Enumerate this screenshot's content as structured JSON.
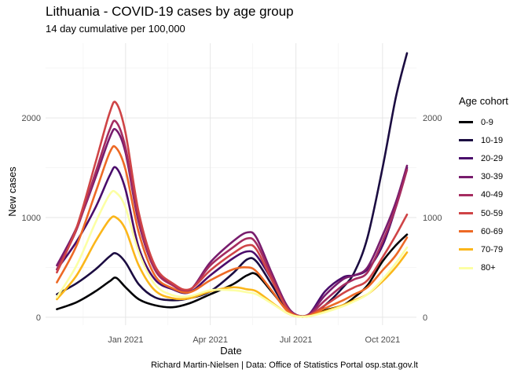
{
  "chart_data": {
    "type": "line",
    "title": "Lithuania - COVID-19 cases by age group",
    "subtitle": "14 day cumulative per 100,000",
    "xlabel": "Date",
    "ylabel": "New cases",
    "caption": "Richard Martin-Nielsen | Data: Office of Statistics Portal osp.stat.gov.lt",
    "legend_title": "Age cohort",
    "legend_position": "right",
    "grid": true,
    "x_ticks": [
      {
        "date": "2021-01-01",
        "label": "Jan 2021"
      },
      {
        "date": "2021-04-01",
        "label": "Apr 2021"
      },
      {
        "date": "2021-07-01",
        "label": "Jul 2021"
      },
      {
        "date": "2021-10-01",
        "label": "Oct 2021"
      }
    ],
    "y_ticks": [
      0,
      1000,
      2000
    ],
    "xlim": [
      "2020-10-08",
      "2021-11-06"
    ],
    "ylim": [
      -80,
      2750
    ],
    "series": [
      {
        "name": "0-9",
        "color": "#000004",
        "points": [
          [
            "2020-10-20",
            80
          ],
          [
            "2020-11-10",
            150
          ],
          [
            "2020-11-30",
            260
          ],
          [
            "2020-12-15",
            360
          ],
          [
            "2020-12-22",
            395
          ],
          [
            "2021-01-01",
            300
          ],
          [
            "2021-01-15",
            180
          ],
          [
            "2021-02-01",
            120
          ],
          [
            "2021-02-20",
            100
          ],
          [
            "2021-03-10",
            140
          ],
          [
            "2021-04-01",
            230
          ],
          [
            "2021-04-25",
            330
          ],
          [
            "2021-05-10",
            420
          ],
          [
            "2021-05-20",
            430
          ],
          [
            "2021-06-05",
            260
          ],
          [
            "2021-06-20",
            90
          ],
          [
            "2021-07-01",
            20
          ],
          [
            "2021-07-15",
            15
          ],
          [
            "2021-08-01",
            70
          ],
          [
            "2021-08-20",
            120
          ],
          [
            "2021-09-01",
            200
          ],
          [
            "2021-09-15",
            320
          ],
          [
            "2021-10-01",
            560
          ],
          [
            "2021-10-15",
            720
          ],
          [
            "2021-10-27",
            830
          ]
        ]
      },
      {
        "name": "10-19",
        "color": "#1B0C41",
        "points": [
          [
            "2020-10-20",
            230
          ],
          [
            "2020-11-10",
            340
          ],
          [
            "2020-11-30",
            480
          ],
          [
            "2020-12-15",
            610
          ],
          [
            "2020-12-22",
            640
          ],
          [
            "2021-01-01",
            550
          ],
          [
            "2021-01-15",
            330
          ],
          [
            "2021-02-01",
            200
          ],
          [
            "2021-02-20",
            170
          ],
          [
            "2021-03-10",
            190
          ],
          [
            "2021-04-01",
            260
          ],
          [
            "2021-04-25",
            440
          ],
          [
            "2021-05-10",
            580
          ],
          [
            "2021-05-20",
            560
          ],
          [
            "2021-06-05",
            330
          ],
          [
            "2021-06-20",
            100
          ],
          [
            "2021-07-01",
            20
          ],
          [
            "2021-07-15",
            15
          ],
          [
            "2021-08-01",
            120
          ],
          [
            "2021-08-20",
            300
          ],
          [
            "2021-09-01",
            450
          ],
          [
            "2021-09-15",
            800
          ],
          [
            "2021-10-01",
            1500
          ],
          [
            "2021-10-15",
            2200
          ],
          [
            "2021-10-27",
            2650
          ]
        ]
      },
      {
        "name": "20-29",
        "color": "#4A0C6B",
        "points": [
          [
            "2020-10-20",
            480
          ],
          [
            "2020-11-10",
            760
          ],
          [
            "2020-11-30",
            1100
          ],
          [
            "2020-12-15",
            1420
          ],
          [
            "2020-12-22",
            1500
          ],
          [
            "2021-01-01",
            1280
          ],
          [
            "2021-01-15",
            700
          ],
          [
            "2021-02-01",
            380
          ],
          [
            "2021-02-20",
            280
          ],
          [
            "2021-03-10",
            250
          ],
          [
            "2021-04-01",
            420
          ],
          [
            "2021-04-25",
            590
          ],
          [
            "2021-05-10",
            660
          ],
          [
            "2021-05-20",
            620
          ],
          [
            "2021-06-05",
            380
          ],
          [
            "2021-06-20",
            120
          ],
          [
            "2021-07-01",
            20
          ],
          [
            "2021-07-15",
            30
          ],
          [
            "2021-08-01",
            260
          ],
          [
            "2021-08-20",
            400
          ],
          [
            "2021-09-01",
            420
          ],
          [
            "2021-09-15",
            480
          ],
          [
            "2021-10-01",
            720
          ],
          [
            "2021-10-15",
            1100
          ],
          [
            "2021-10-27",
            1500
          ]
        ]
      },
      {
        "name": "30-39",
        "color": "#781C6D",
        "points": [
          [
            "2020-10-20",
            520
          ],
          [
            "2020-11-10",
            900
          ],
          [
            "2020-11-30",
            1400
          ],
          [
            "2020-12-15",
            1800
          ],
          [
            "2020-12-22",
            1880
          ],
          [
            "2021-01-01",
            1650
          ],
          [
            "2021-01-15",
            950
          ],
          [
            "2021-02-01",
            480
          ],
          [
            "2021-02-20",
            330
          ],
          [
            "2021-03-10",
            270
          ],
          [
            "2021-04-01",
            550
          ],
          [
            "2021-04-25",
            760
          ],
          [
            "2021-05-10",
            850
          ],
          [
            "2021-05-20",
            800
          ],
          [
            "2021-06-05",
            450
          ],
          [
            "2021-06-20",
            140
          ],
          [
            "2021-07-01",
            25
          ],
          [
            "2021-07-15",
            30
          ],
          [
            "2021-08-01",
            220
          ],
          [
            "2021-08-20",
            380
          ],
          [
            "2021-09-01",
            420
          ],
          [
            "2021-09-15",
            500
          ],
          [
            "2021-10-01",
            820
          ],
          [
            "2021-10-15",
            1150
          ],
          [
            "2021-10-27",
            1520
          ]
        ]
      },
      {
        "name": "40-49",
        "color": "#A52C60",
        "points": [
          [
            "2020-10-20",
            480
          ],
          [
            "2020-11-10",
            880
          ],
          [
            "2020-11-30",
            1450
          ],
          [
            "2020-12-15",
            1880
          ],
          [
            "2020-12-22",
            1960
          ],
          [
            "2021-01-01",
            1700
          ],
          [
            "2021-01-15",
            980
          ],
          [
            "2021-02-01",
            480
          ],
          [
            "2021-02-20",
            320
          ],
          [
            "2021-03-10",
            270
          ],
          [
            "2021-04-01",
            520
          ],
          [
            "2021-04-25",
            700
          ],
          [
            "2021-05-10",
            790
          ],
          [
            "2021-05-20",
            740
          ],
          [
            "2021-06-05",
            420
          ],
          [
            "2021-06-20",
            120
          ],
          [
            "2021-07-01",
            20
          ],
          [
            "2021-07-15",
            25
          ],
          [
            "2021-08-01",
            170
          ],
          [
            "2021-08-20",
            320
          ],
          [
            "2021-09-01",
            380
          ],
          [
            "2021-09-15",
            450
          ],
          [
            "2021-10-01",
            760
          ],
          [
            "2021-10-15",
            1100
          ],
          [
            "2021-10-27",
            1480
          ]
        ]
      },
      {
        "name": "50-59",
        "color": "#CF4446",
        "points": [
          [
            "2020-10-20",
            450
          ],
          [
            "2020-11-10",
            900
          ],
          [
            "2020-11-30",
            1550
          ],
          [
            "2020-12-15",
            2050
          ],
          [
            "2020-12-22",
            2150
          ],
          [
            "2021-01-01",
            1850
          ],
          [
            "2021-01-15",
            1050
          ],
          [
            "2021-02-01",
            520
          ],
          [
            "2021-02-20",
            340
          ],
          [
            "2021-03-10",
            280
          ],
          [
            "2021-04-01",
            470
          ],
          [
            "2021-04-25",
            640
          ],
          [
            "2021-05-10",
            720
          ],
          [
            "2021-05-20",
            680
          ],
          [
            "2021-06-05",
            380
          ],
          [
            "2021-06-20",
            110
          ],
          [
            "2021-07-01",
            20
          ],
          [
            "2021-07-15",
            20
          ],
          [
            "2021-08-01",
            120
          ],
          [
            "2021-08-20",
            240
          ],
          [
            "2021-09-01",
            300
          ],
          [
            "2021-09-15",
            370
          ],
          [
            "2021-10-01",
            600
          ],
          [
            "2021-10-15",
            820
          ],
          [
            "2021-10-27",
            1030
          ]
        ]
      },
      {
        "name": "60-69",
        "color": "#ED6925",
        "points": [
          [
            "2020-10-20",
            350
          ],
          [
            "2020-11-10",
            720
          ],
          [
            "2020-11-30",
            1250
          ],
          [
            "2020-12-15",
            1650
          ],
          [
            "2020-12-22",
            1700
          ],
          [
            "2021-01-01",
            1480
          ],
          [
            "2021-01-15",
            850
          ],
          [
            "2021-02-01",
            420
          ],
          [
            "2021-02-20",
            290
          ],
          [
            "2021-03-10",
            250
          ],
          [
            "2021-04-01",
            370
          ],
          [
            "2021-04-25",
            480
          ],
          [
            "2021-05-10",
            500
          ],
          [
            "2021-05-20",
            460
          ],
          [
            "2021-06-05",
            270
          ],
          [
            "2021-06-20",
            80
          ],
          [
            "2021-07-01",
            15
          ],
          [
            "2021-07-15",
            15
          ],
          [
            "2021-08-01",
            90
          ],
          [
            "2021-08-20",
            170
          ],
          [
            "2021-09-01",
            230
          ],
          [
            "2021-09-15",
            300
          ],
          [
            "2021-10-01",
            470
          ],
          [
            "2021-10-15",
            620
          ],
          [
            "2021-10-27",
            800
          ]
        ]
      },
      {
        "name": "70-79",
        "color": "#FBB61A",
        "points": [
          [
            "2020-10-20",
            180
          ],
          [
            "2020-11-10",
            420
          ],
          [
            "2020-11-30",
            760
          ],
          [
            "2020-12-15",
            980
          ],
          [
            "2020-12-22",
            1000
          ],
          [
            "2021-01-01",
            880
          ],
          [
            "2021-01-15",
            520
          ],
          [
            "2021-02-01",
            270
          ],
          [
            "2021-02-20",
            190
          ],
          [
            "2021-03-10",
            190
          ],
          [
            "2021-04-01",
            260
          ],
          [
            "2021-04-25",
            300
          ],
          [
            "2021-05-10",
            280
          ],
          [
            "2021-05-20",
            260
          ],
          [
            "2021-06-05",
            150
          ],
          [
            "2021-06-20",
            50
          ],
          [
            "2021-07-01",
            10
          ],
          [
            "2021-07-15",
            10
          ],
          [
            "2021-08-01",
            60
          ],
          [
            "2021-08-20",
            120
          ],
          [
            "2021-09-01",
            170
          ],
          [
            "2021-09-15",
            230
          ],
          [
            "2021-10-01",
            360
          ],
          [
            "2021-10-15",
            500
          ],
          [
            "2021-10-27",
            650
          ]
        ]
      },
      {
        "name": "80+",
        "color": "#FCFFA4",
        "points": [
          [
            "2020-10-20",
            200
          ],
          [
            "2020-11-10",
            520
          ],
          [
            "2020-11-30",
            950
          ],
          [
            "2020-12-15",
            1230
          ],
          [
            "2020-12-22",
            1250
          ],
          [
            "2021-01-01",
            1100
          ],
          [
            "2021-01-15",
            650
          ],
          [
            "2021-02-01",
            330
          ],
          [
            "2021-02-20",
            220
          ],
          [
            "2021-03-10",
            210
          ],
          [
            "2021-04-01",
            270
          ],
          [
            "2021-04-25",
            270
          ],
          [
            "2021-05-10",
            250
          ],
          [
            "2021-05-20",
            230
          ],
          [
            "2021-06-05",
            140
          ],
          [
            "2021-06-20",
            50
          ],
          [
            "2021-07-01",
            10
          ],
          [
            "2021-07-15",
            10
          ],
          [
            "2021-08-01",
            50
          ],
          [
            "2021-08-20",
            110
          ],
          [
            "2021-09-01",
            160
          ],
          [
            "2021-09-15",
            230
          ],
          [
            "2021-10-01",
            380
          ],
          [
            "2021-10-15",
            540
          ],
          [
            "2021-10-27",
            700
          ]
        ]
      }
    ]
  }
}
